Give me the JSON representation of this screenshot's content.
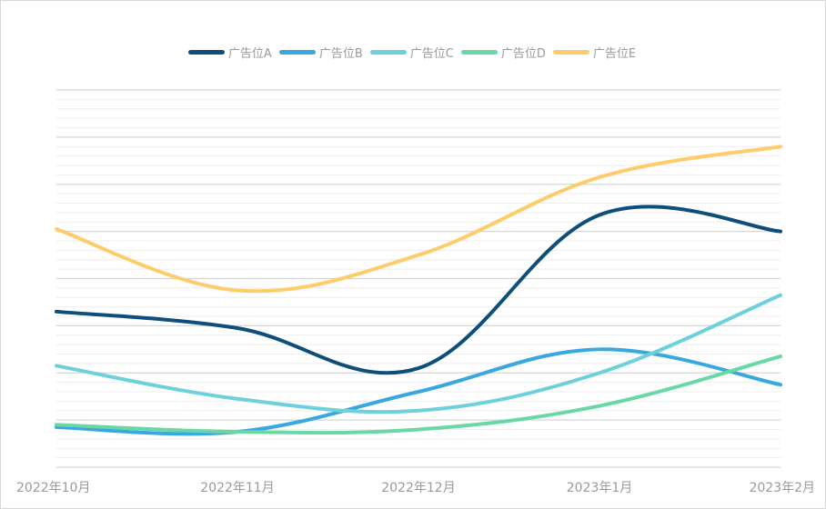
{
  "chart_data": {
    "type": "line",
    "title": "",
    "xlabel": "",
    "ylabel": "",
    "categories": [
      "2022年10月",
      "2022年11月",
      "2022年12月",
      "2023年1月",
      "2023年2月"
    ],
    "ylim": [
      0,
      80
    ],
    "grid": true,
    "legend": "top-center",
    "series": [
      {
        "name": "广告位A",
        "color": "#0d4f7a",
        "values": [
          33,
          29.5,
          21,
          53.5,
          50
        ]
      },
      {
        "name": "广告位B",
        "color": "#3aa8e0",
        "values": [
          8.5,
          7.5,
          16,
          25,
          17.5
        ]
      },
      {
        "name": "广告位C",
        "color": "#6dd1dc",
        "values": [
          21.5,
          14.5,
          12,
          20,
          36.5
        ]
      },
      {
        "name": "广告位D",
        "color": "#6ad8a6",
        "values": [
          9,
          7.5,
          8,
          13,
          23.5
        ]
      },
      {
        "name": "广告位E",
        "color": "#fdcd6b",
        "values": [
          50.5,
          37.5,
          45,
          61.5,
          68
        ]
      }
    ]
  }
}
